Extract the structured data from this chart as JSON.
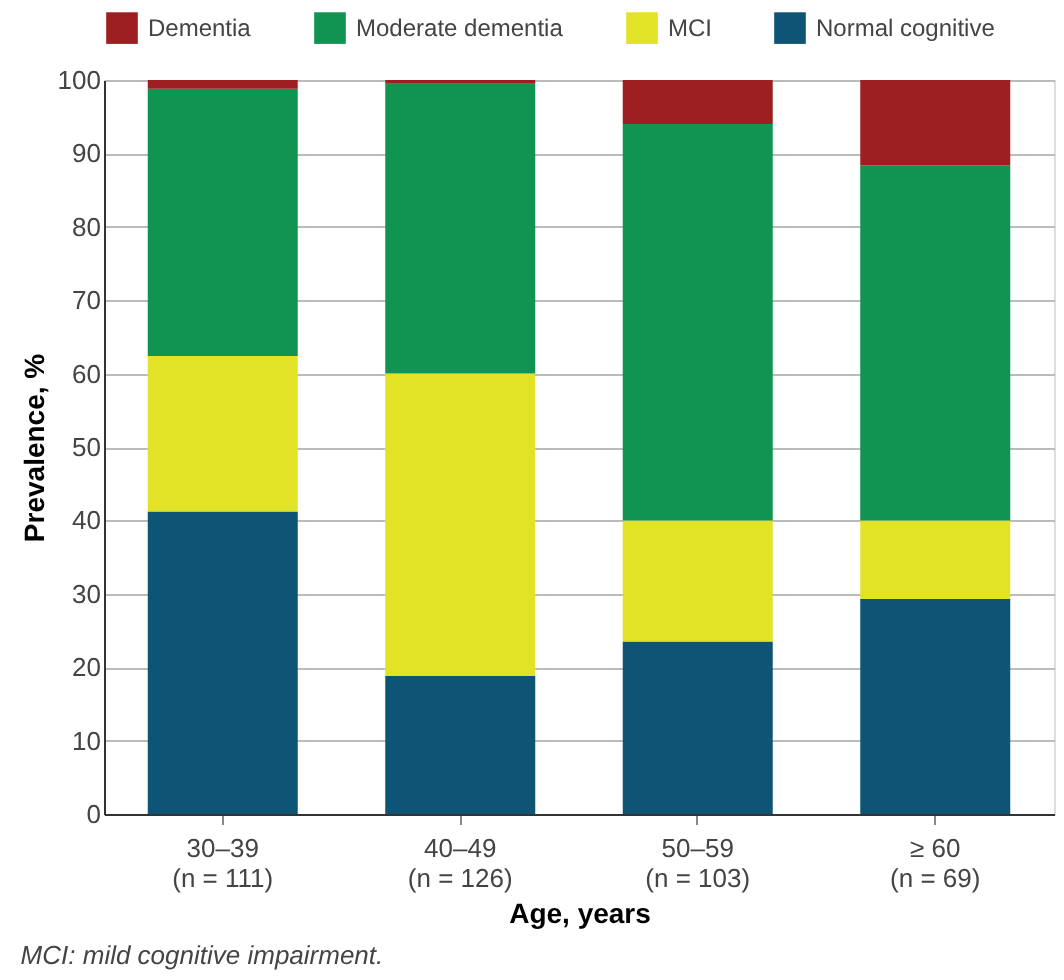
{
  "chart_data": {
    "type": "bar",
    "stacked": true,
    "categories": [
      "30–39\n(n = 111)",
      "40–49\n(n = 126)",
      "50–59\n(n = 103)",
      "≥ 60\n(n = 69)"
    ],
    "series": [
      {
        "name": "Normal cognitive",
        "color": "#0e5475",
        "values": [
          41.2,
          18.8,
          23.5,
          29.3
        ]
      },
      {
        "name": "MCI",
        "color": "#e2e227",
        "values": [
          21.2,
          41.2,
          16.5,
          10.7
        ]
      },
      {
        "name": "Moderate dementia",
        "color": "#119352",
        "values": [
          36.4,
          39.5,
          54.0,
          48.4
        ]
      },
      {
        "name": "Dementia",
        "color": "#9e1f22",
        "values": [
          1.2,
          0.5,
          6.0,
          11.6
        ]
      }
    ],
    "xlabel": "Age, years",
    "ylabel": "Prevalence, %",
    "ylim": [
      0,
      100
    ],
    "yticks": [
      0,
      10,
      20,
      30,
      40,
      50,
      60,
      70,
      80,
      90,
      100
    ],
    "grid": "y",
    "legend": "top",
    "annotations": [
      "MCI: mild cognitive impairment."
    ]
  }
}
